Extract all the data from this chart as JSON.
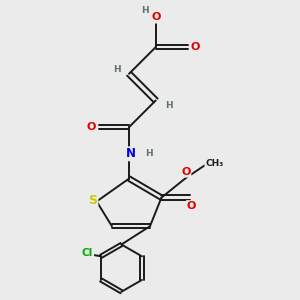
{
  "bg_color": "#ebebeb",
  "bond_color": "#1a1a1a",
  "bond_width": 1.4,
  "atom_colors": {
    "O": "#dd0000",
    "N": "#0000ee",
    "S": "#cccc00",
    "Cl": "#00aa00",
    "C": "#1a1a1a",
    "H": "#607070"
  },
  "font_size": 7.0
}
